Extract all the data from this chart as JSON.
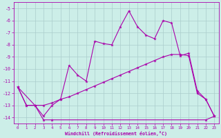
{
  "xlabel": "Windchill (Refroidissement éolien,°C)",
  "background_color": "#cceee8",
  "grid_color": "#aacccc",
  "line_color": "#aa00aa",
  "xlim": [
    -0.5,
    23.5
  ],
  "ylim": [
    -14.5,
    -4.5
  ],
  "yticks": [
    -14,
    -13,
    -12,
    -11,
    -10,
    -9,
    -8,
    -7,
    -6,
    -5
  ],
  "xticks": [
    0,
    1,
    2,
    3,
    4,
    5,
    6,
    7,
    8,
    9,
    10,
    11,
    12,
    13,
    14,
    15,
    16,
    17,
    18,
    19,
    20,
    21,
    22,
    23
  ],
  "line1_x": [
    0,
    1,
    2,
    3,
    4,
    5,
    6,
    7,
    8,
    9,
    10,
    11,
    12,
    13,
    14,
    15,
    16,
    17,
    18,
    19,
    20,
    21,
    22,
    23
  ],
  "line1_y": [
    -11.5,
    -13.0,
    -13.0,
    -14.2,
    -14.2,
    -14.2,
    -14.2,
    -14.2,
    -14.2,
    -14.2,
    -14.2,
    -14.2,
    -14.2,
    -14.2,
    -14.2,
    -14.2,
    -14.2,
    -14.2,
    -14.2,
    -14.2,
    -14.2,
    -14.2,
    -14.2,
    -13.9
  ],
  "line2_x": [
    0,
    1,
    2,
    3,
    4,
    5,
    6,
    7,
    8,
    9,
    10,
    11,
    12,
    13,
    14,
    15,
    16,
    17,
    18,
    19,
    20,
    21,
    22,
    23
  ],
  "line2_y": [
    -11.5,
    -13.0,
    -13.0,
    -13.0,
    -12.8,
    -12.5,
    -12.3,
    -12.0,
    -11.7,
    -11.4,
    -11.1,
    -10.8,
    -10.5,
    -10.2,
    -9.9,
    -9.6,
    -9.3,
    -9.0,
    -8.8,
    -8.8,
    -8.9,
    -12.0,
    -12.5,
    -13.9
  ],
  "line3_x": [
    0,
    2,
    3,
    4,
    5,
    6,
    7,
    8,
    9,
    10,
    11,
    12,
    13,
    14,
    15,
    16,
    17,
    18,
    19,
    20,
    21,
    22,
    23
  ],
  "line3_y": [
    -11.5,
    -13.0,
    -13.9,
    -13.0,
    -12.5,
    -9.7,
    -10.5,
    -11.0,
    -7.7,
    -7.9,
    -8.0,
    -6.5,
    -5.2,
    -6.5,
    -7.2,
    -7.5,
    -6.0,
    -6.2,
    -8.9,
    -8.7,
    -11.8,
    -12.5,
    -13.9
  ],
  "line1_marker_x": [
    0,
    1,
    2,
    3,
    4,
    22,
    23
  ],
  "line1_marker_y": [
    -11.5,
    -13.0,
    -13.0,
    -14.2,
    -14.2,
    -14.2,
    -13.9
  ],
  "line2_marker_x": [
    0,
    1,
    2,
    3,
    4,
    5,
    6,
    7,
    8,
    9,
    10,
    11,
    12,
    13,
    14,
    15,
    16,
    17,
    18,
    19,
    20,
    21,
    22,
    23
  ],
  "line2_marker_y": [
    -11.5,
    -13.0,
    -13.0,
    -13.0,
    -12.8,
    -12.5,
    -12.3,
    -12.0,
    -11.7,
    -11.4,
    -11.1,
    -10.8,
    -10.5,
    -10.2,
    -9.9,
    -9.6,
    -9.3,
    -9.0,
    -8.8,
    -8.8,
    -8.9,
    -12.0,
    -12.5,
    -13.9
  ],
  "line3_marker_x": [
    0,
    2,
    3,
    4,
    5,
    6,
    7,
    8,
    9,
    10,
    11,
    12,
    13,
    14,
    15,
    16,
    17,
    18,
    19,
    20,
    21,
    22,
    23
  ],
  "line3_marker_y": [
    -11.5,
    -13.0,
    -13.9,
    -13.0,
    -12.5,
    -9.7,
    -10.5,
    -11.0,
    -7.7,
    -7.9,
    -8.0,
    -6.5,
    -5.2,
    -6.5,
    -7.2,
    -7.5,
    -6.0,
    -6.2,
    -8.9,
    -8.7,
    -11.8,
    -12.5,
    -13.9
  ]
}
